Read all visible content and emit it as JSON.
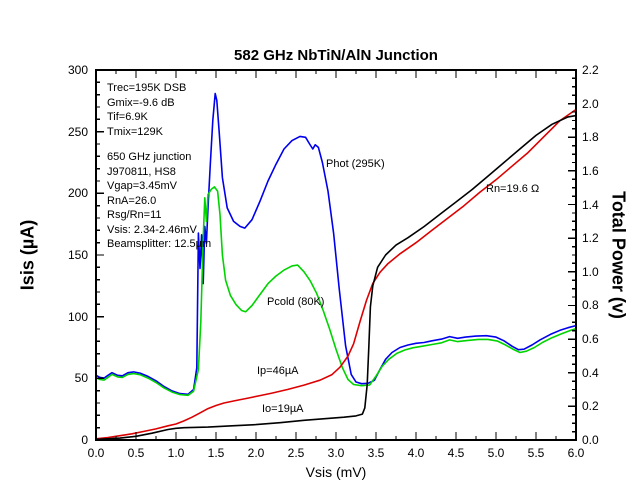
{
  "chart_data": {
    "type": "line",
    "title": "582 GHz NbTiN/AlN Junction",
    "x_axis": {
      "title": "Vsis (mV)",
      "min": 0,
      "max": 6,
      "minor_step": 0.25,
      "major_ticks": [
        0,
        0.5,
        1.0,
        1.5,
        2.0,
        2.5,
        3.0,
        3.5,
        4.0,
        4.5,
        5.0,
        5.5,
        6.0
      ],
      "major_labels": [
        "0.0",
        "0.5",
        "1.0",
        "1.5",
        "2.0",
        "2.5",
        "3.0",
        "3.5",
        "4.0",
        "4.5",
        "5.0",
        "5.5",
        "6.0"
      ]
    },
    "left_axis": {
      "title": "Isis (µA)",
      "min": 0,
      "max": 300,
      "minor_step": 10,
      "major_ticks": [
        0,
        50,
        100,
        150,
        200,
        250,
        300
      ],
      "major_labels": [
        "0",
        "50",
        "100",
        "150",
        "200",
        "250",
        "300"
      ]
    },
    "right_axis": {
      "title": "Total Power (v)",
      "min": 0,
      "max": 2.2,
      "minor_step": 0.05,
      "major_ticks": [
        0,
        0.2,
        0.4,
        0.6,
        0.8,
        1.0,
        1.2,
        1.4,
        1.6,
        1.8,
        2.0,
        2.2
      ],
      "major_labels": [
        "0.0",
        "0.2",
        "0.4",
        "0.6",
        "0.8",
        "1.0",
        "1.2",
        "1.4",
        "1.6",
        "1.8",
        "2.0",
        "2.2"
      ]
    },
    "rn_label": "Rn=19.6 Ω",
    "grid": false,
    "series": [
      {
        "name": "Phot (295K)",
        "axis": "right",
        "color": "#0000ee",
        "points": [
          [
            0.0,
            0.385
          ],
          [
            0.05,
            0.372
          ],
          [
            0.1,
            0.368
          ],
          [
            0.15,
            0.385
          ],
          [
            0.2,
            0.4
          ],
          [
            0.27,
            0.385
          ],
          [
            0.33,
            0.382
          ],
          [
            0.4,
            0.4
          ],
          [
            0.47,
            0.405
          ],
          [
            0.55,
            0.398
          ],
          [
            0.65,
            0.378
          ],
          [
            0.75,
            0.352
          ],
          [
            0.85,
            0.318
          ],
          [
            0.95,
            0.292
          ],
          [
            1.05,
            0.276
          ],
          [
            1.15,
            0.272
          ],
          [
            1.22,
            0.3
          ],
          [
            1.26,
            0.43
          ],
          [
            1.28,
            1.23
          ],
          [
            1.3,
            1.02
          ],
          [
            1.32,
            1.22
          ],
          [
            1.34,
            0.93
          ],
          [
            1.36,
            1.27
          ],
          [
            1.38,
            1.17
          ],
          [
            1.4,
            1.38
          ],
          [
            1.43,
            1.65
          ],
          [
            1.46,
            1.9
          ],
          [
            1.49,
            2.06
          ],
          [
            1.51,
            2.02
          ],
          [
            1.54,
            1.83
          ],
          [
            1.58,
            1.56
          ],
          [
            1.64,
            1.38
          ],
          [
            1.72,
            1.3
          ],
          [
            1.8,
            1.27
          ],
          [
            1.86,
            1.26
          ],
          [
            1.95,
            1.31
          ],
          [
            2.05,
            1.42
          ],
          [
            2.15,
            1.54
          ],
          [
            2.25,
            1.64
          ],
          [
            2.35,
            1.73
          ],
          [
            2.45,
            1.78
          ],
          [
            2.55,
            1.805
          ],
          [
            2.62,
            1.8
          ],
          [
            2.67,
            1.76
          ],
          [
            2.71,
            1.73
          ],
          [
            2.74,
            1.755
          ],
          [
            2.78,
            1.74
          ],
          [
            2.83,
            1.65
          ],
          [
            2.9,
            1.48
          ],
          [
            2.97,
            1.23
          ],
          [
            3.04,
            0.9
          ],
          [
            3.12,
            0.56
          ],
          [
            3.19,
            0.39
          ],
          [
            3.25,
            0.345
          ],
          [
            3.32,
            0.335
          ],
          [
            3.4,
            0.337
          ],
          [
            3.48,
            0.355
          ],
          [
            3.55,
            0.42
          ],
          [
            3.62,
            0.48
          ],
          [
            3.7,
            0.52
          ],
          [
            3.8,
            0.55
          ],
          [
            3.9,
            0.565
          ],
          [
            4.0,
            0.575
          ],
          [
            4.1,
            0.58
          ],
          [
            4.2,
            0.59
          ],
          [
            4.32,
            0.6
          ],
          [
            4.42,
            0.615
          ],
          [
            4.52,
            0.605
          ],
          [
            4.62,
            0.612
          ],
          [
            4.75,
            0.618
          ],
          [
            4.88,
            0.62
          ],
          [
            5.0,
            0.612
          ],
          [
            5.1,
            0.59
          ],
          [
            5.2,
            0.558
          ],
          [
            5.28,
            0.537
          ],
          [
            5.35,
            0.54
          ],
          [
            5.45,
            0.565
          ],
          [
            5.55,
            0.595
          ],
          [
            5.68,
            0.628
          ],
          [
            5.8,
            0.652
          ],
          [
            5.9,
            0.668
          ],
          [
            6.0,
            0.68
          ]
        ]
      },
      {
        "name": "Pcold (80K)",
        "axis": "right",
        "color": "#00d400",
        "points": [
          [
            0.0,
            0.37
          ],
          [
            0.05,
            0.36
          ],
          [
            0.1,
            0.356
          ],
          [
            0.15,
            0.372
          ],
          [
            0.2,
            0.39
          ],
          [
            0.27,
            0.375
          ],
          [
            0.33,
            0.372
          ],
          [
            0.4,
            0.39
          ],
          [
            0.47,
            0.395
          ],
          [
            0.55,
            0.388
          ],
          [
            0.65,
            0.368
          ],
          [
            0.75,
            0.342
          ],
          [
            0.85,
            0.31
          ],
          [
            0.95,
            0.285
          ],
          [
            1.05,
            0.27
          ],
          [
            1.15,
            0.266
          ],
          [
            1.22,
            0.29
          ],
          [
            1.28,
            0.42
          ],
          [
            1.31,
            0.7
          ],
          [
            1.34,
            1.2
          ],
          [
            1.36,
            1.44
          ],
          [
            1.38,
            1.3
          ],
          [
            1.4,
            1.46
          ],
          [
            1.44,
            1.49
          ],
          [
            1.48,
            1.505
          ],
          [
            1.52,
            1.48
          ],
          [
            1.55,
            1.34
          ],
          [
            1.58,
            1.1
          ],
          [
            1.62,
            0.95
          ],
          [
            1.68,
            0.86
          ],
          [
            1.75,
            0.805
          ],
          [
            1.82,
            0.77
          ],
          [
            1.87,
            0.762
          ],
          [
            1.95,
            0.8
          ],
          [
            2.05,
            0.865
          ],
          [
            2.15,
            0.93
          ],
          [
            2.25,
            0.975
          ],
          [
            2.35,
            1.01
          ],
          [
            2.45,
            1.035
          ],
          [
            2.52,
            1.04
          ],
          [
            2.6,
            1.0
          ],
          [
            2.68,
            0.945
          ],
          [
            2.76,
            0.87
          ],
          [
            2.84,
            0.77
          ],
          [
            2.92,
            0.66
          ],
          [
            3.0,
            0.54
          ],
          [
            3.08,
            0.43
          ],
          [
            3.15,
            0.36
          ],
          [
            3.22,
            0.33
          ],
          [
            3.32,
            0.323
          ],
          [
            3.42,
            0.327
          ],
          [
            3.5,
            0.38
          ],
          [
            3.58,
            0.44
          ],
          [
            3.66,
            0.48
          ],
          [
            3.76,
            0.515
          ],
          [
            3.86,
            0.535
          ],
          [
            3.96,
            0.548
          ],
          [
            4.08,
            0.558
          ],
          [
            4.2,
            0.568
          ],
          [
            4.32,
            0.578
          ],
          [
            4.42,
            0.595
          ],
          [
            4.52,
            0.585
          ],
          [
            4.65,
            0.592
          ],
          [
            4.78,
            0.598
          ],
          [
            4.9,
            0.598
          ],
          [
            5.02,
            0.588
          ],
          [
            5.12,
            0.565
          ],
          [
            5.22,
            0.538
          ],
          [
            5.3,
            0.52
          ],
          [
            5.38,
            0.528
          ],
          [
            5.48,
            0.55
          ],
          [
            5.58,
            0.58
          ],
          [
            5.7,
            0.608
          ],
          [
            5.82,
            0.632
          ],
          [
            5.92,
            0.65
          ],
          [
            6.0,
            0.662
          ]
        ]
      },
      {
        "name": "Ip=46µA",
        "axis": "left",
        "color": "#dd0000",
        "points": [
          [
            0.0,
            1
          ],
          [
            0.15,
            2
          ],
          [
            0.3,
            3.5
          ],
          [
            0.45,
            5
          ],
          [
            0.6,
            7
          ],
          [
            0.75,
            9
          ],
          [
            0.9,
            11.5
          ],
          [
            1.0,
            13
          ],
          [
            1.1,
            15.5
          ],
          [
            1.2,
            18.5
          ],
          [
            1.3,
            22
          ],
          [
            1.4,
            25.5
          ],
          [
            1.5,
            28
          ],
          [
            1.6,
            30
          ],
          [
            1.75,
            32
          ],
          [
            1.9,
            34
          ],
          [
            2.05,
            36
          ],
          [
            2.2,
            38
          ],
          [
            2.4,
            41
          ],
          [
            2.6,
            44.5
          ],
          [
            2.8,
            48.5
          ],
          [
            2.95,
            53
          ],
          [
            3.05,
            59
          ],
          [
            3.15,
            68
          ],
          [
            3.22,
            78
          ],
          [
            3.3,
            96
          ],
          [
            3.38,
            113
          ],
          [
            3.46,
            127
          ],
          [
            3.55,
            136
          ],
          [
            3.65,
            143
          ],
          [
            3.8,
            151
          ],
          [
            4.0,
            160
          ],
          [
            4.2,
            170
          ],
          [
            4.4,
            180
          ],
          [
            4.6,
            190
          ],
          [
            4.8,
            201
          ],
          [
            5.0,
            211
          ],
          [
            5.2,
            222
          ],
          [
            5.4,
            233
          ],
          [
            5.6,
            246
          ],
          [
            5.8,
            259
          ],
          [
            6.0,
            268
          ]
        ]
      },
      {
        "name": "Io=19µA",
        "axis": "left",
        "color": "#000000",
        "points": [
          [
            0.0,
            0.5
          ],
          [
            0.3,
            1.5
          ],
          [
            0.5,
            3
          ],
          [
            0.7,
            5.5
          ],
          [
            0.9,
            8.5
          ],
          [
            1.0,
            9.5
          ],
          [
            1.1,
            10
          ],
          [
            1.4,
            10.5
          ],
          [
            1.7,
            11.5
          ],
          [
            2.0,
            12.5
          ],
          [
            2.3,
            14
          ],
          [
            2.6,
            16
          ],
          [
            2.9,
            17.5
          ],
          [
            3.1,
            18.5
          ],
          [
            3.25,
            19.5
          ],
          [
            3.33,
            21
          ],
          [
            3.36,
            26
          ],
          [
            3.39,
            45
          ],
          [
            3.41,
            75
          ],
          [
            3.43,
            108
          ],
          [
            3.46,
            125
          ],
          [
            3.52,
            140
          ],
          [
            3.62,
            150
          ],
          [
            3.75,
            158
          ],
          [
            3.9,
            164
          ],
          [
            4.1,
            173
          ],
          [
            4.3,
            183
          ],
          [
            4.5,
            193
          ],
          [
            4.7,
            203
          ],
          [
            4.9,
            214
          ],
          [
            5.1,
            225
          ],
          [
            5.3,
            236
          ],
          [
            5.5,
            247
          ],
          [
            5.7,
            256
          ],
          [
            5.9,
            262
          ],
          [
            6.0,
            263
          ]
        ]
      }
    ]
  },
  "annotations": {
    "receiver": [
      "Trec=195K DSB",
      "Gmix=-9.6 dB",
      "Tif=6.9K",
      "Tmix=129K"
    ],
    "junction": [
      "650 GHz junction",
      "J970811, HS8",
      "Vgap=3.45mV",
      "RnA=26.0",
      "Rsg/Rn=11",
      "Vsis: 2.34-2.46mV",
      "Beamsplitter: 12.5µm"
    ]
  }
}
